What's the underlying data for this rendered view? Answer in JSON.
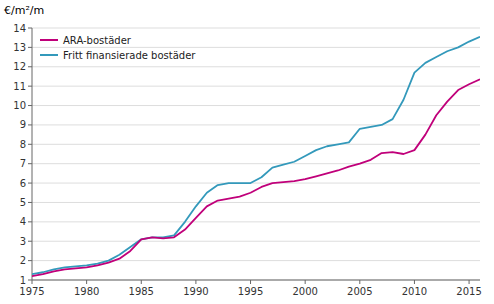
{
  "chart_data": {
    "type": "line",
    "ylabel": "€/m²/m",
    "x": [
      1975,
      1976,
      1977,
      1978,
      1979,
      1980,
      1981,
      1982,
      1983,
      1984,
      1985,
      1986,
      1987,
      1988,
      1989,
      1990,
      1991,
      1992,
      1993,
      1994,
      1995,
      1996,
      1997,
      1998,
      1999,
      2000,
      2001,
      2002,
      2003,
      2004,
      2005,
      2006,
      2007,
      2008,
      2009,
      2010,
      2011,
      2012,
      2013,
      2014,
      2015,
      2016
    ],
    "series": [
      {
        "name": "ARA-bostäder",
        "color": "#c0007a",
        "values": [
          1.2,
          1.3,
          1.45,
          1.55,
          1.6,
          1.65,
          1.75,
          1.9,
          2.1,
          2.5,
          3.1,
          3.2,
          3.15,
          3.2,
          3.6,
          4.2,
          4.8,
          5.1,
          5.2,
          5.3,
          5.5,
          5.8,
          6.0,
          6.05,
          6.1,
          6.2,
          6.35,
          6.5,
          6.65,
          6.85,
          7.0,
          7.2,
          7.55,
          7.6,
          7.5,
          7.7,
          8.5,
          9.5,
          10.2,
          10.8,
          11.1,
          11.35
        ]
      },
      {
        "name": "Fritt finansierade bostäder",
        "color": "#3399bb",
        "values": [
          1.3,
          1.4,
          1.55,
          1.65,
          1.7,
          1.75,
          1.85,
          2.0,
          2.3,
          2.7,
          3.1,
          3.2,
          3.2,
          3.3,
          4.0,
          4.8,
          5.5,
          5.9,
          6.0,
          6.0,
          6.0,
          6.3,
          6.8,
          6.95,
          7.1,
          7.4,
          7.7,
          7.9,
          8.0,
          8.1,
          8.8,
          8.9,
          9.0,
          9.3,
          10.3,
          11.7,
          12.2,
          12.5,
          12.8,
          13.0,
          13.3,
          13.55
        ]
      }
    ],
    "xlim": [
      1975,
      2016
    ],
    "xticks": [
      1975,
      1980,
      1985,
      1990,
      1995,
      2000,
      2005,
      2010,
      2015
    ],
    "ylim": [
      1,
      14
    ],
    "yticks": [
      1,
      2,
      3,
      4,
      5,
      6,
      7,
      8,
      9,
      10,
      11,
      12,
      13,
      14
    ],
    "grid": true,
    "legend": "upper left"
  }
}
